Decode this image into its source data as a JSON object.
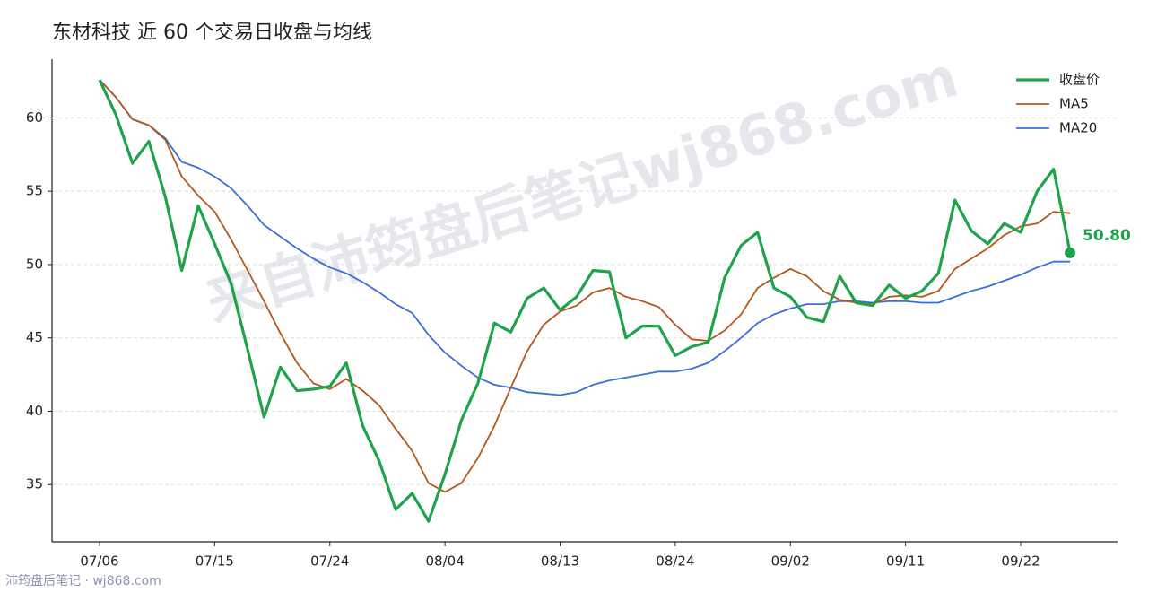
{
  "chart_data": {
    "type": "line",
    "title": "东材科技 近 60 个交易日收盘与均线",
    "watermark": "来自沛筠盘后笔记wj868.com",
    "source": "沛筠盘后笔记 · wj868.com",
    "categories": [
      "07/06",
      null,
      null,
      null,
      null,
      null,
      null,
      "07/15",
      null,
      null,
      null,
      null,
      null,
      null,
      "07/24",
      null,
      null,
      null,
      null,
      null,
      null,
      "08/04",
      null,
      null,
      null,
      null,
      null,
      null,
      "08/13",
      null,
      null,
      null,
      null,
      null,
      null,
      "08/24",
      null,
      null,
      null,
      null,
      null,
      null,
      "09/02",
      null,
      null,
      null,
      null,
      null,
      null,
      "09/11",
      null,
      null,
      null,
      null,
      null,
      null,
      "09/22",
      null,
      null,
      null
    ],
    "ylim": [
      31.1,
      64.0
    ],
    "yticks": [
      35,
      40,
      45,
      50,
      55,
      60
    ],
    "grid": true,
    "legend": "upper right",
    "series": [
      {
        "name": "收盘价",
        "color": "#1fa34a",
        "values": [
          62.6,
          60.2,
          56.9,
          58.4,
          54.6,
          49.6,
          54.0,
          51.4,
          48.7,
          44.2,
          39.6,
          43.0,
          41.4,
          41.5,
          41.7,
          43.3,
          39.0,
          36.6,
          33.3,
          34.4,
          32.5,
          35.7,
          39.4,
          41.9,
          46.0,
          45.4,
          47.7,
          48.4,
          46.9,
          47.8,
          49.6,
          49.5,
          45.0,
          45.8,
          45.8,
          43.8,
          44.4,
          44.7,
          49.1,
          51.3,
          52.2,
          48.4,
          47.8,
          46.4,
          46.1,
          49.2,
          47.4,
          47.2,
          48.6,
          47.7,
          48.2,
          49.4,
          54.4,
          52.3,
          51.4,
          52.8,
          52.2,
          55.0,
          56.5,
          50.8
        ],
        "value_labels": [
          null,
          null,
          null,
          null,
          null,
          null,
          null,
          null,
          null,
          null,
          null,
          null,
          null,
          null,
          null,
          null,
          null,
          null,
          null,
          null,
          null,
          null,
          null,
          null,
          null,
          null,
          null,
          null,
          null,
          null,
          null,
          null,
          null,
          null,
          null,
          null,
          null,
          null,
          null,
          null,
          null,
          null,
          null,
          null,
          null,
          null,
          null,
          null,
          null,
          null,
          null,
          null,
          null,
          null,
          null,
          null,
          null,
          null,
          null,
          "50.80"
        ]
      },
      {
        "name": "MA5",
        "color": "#b5561a",
        "values": [
          62.6,
          61.4,
          59.9,
          59.5,
          58.5,
          56.0,
          54.7,
          53.6,
          51.7,
          49.6,
          47.5,
          45.3,
          43.3,
          41.9,
          41.5,
          42.2,
          41.4,
          40.4,
          38.8,
          37.3,
          35.1,
          34.5,
          35.1,
          36.8,
          39.0,
          41.6,
          44.1,
          45.9,
          46.8,
          47.2,
          48.1,
          48.4,
          47.8,
          47.5,
          47.1,
          45.9,
          44.9,
          44.8,
          45.5,
          46.6,
          48.4,
          49.1,
          49.7,
          49.2,
          48.2,
          47.6,
          47.4,
          47.3,
          47.8,
          47.9,
          47.8,
          48.2,
          49.7,
          50.4,
          51.1,
          52.0,
          52.6,
          52.8,
          53.6,
          53.5
        ]
      },
      {
        "name": "MA20",
        "color": "#3a6fdb",
        "values": [
          62.6,
          61.4,
          59.9,
          59.5,
          58.6,
          57.0,
          56.6,
          56.0,
          55.2,
          54.0,
          52.7,
          51.9,
          51.1,
          50.4,
          49.8,
          49.4,
          48.8,
          48.1,
          47.3,
          46.7,
          45.2,
          44.0,
          43.1,
          42.3,
          41.8,
          41.6,
          41.3,
          41.2,
          41.1,
          41.3,
          41.8,
          42.1,
          42.3,
          42.5,
          42.7,
          42.7,
          42.9,
          43.3,
          44.1,
          45.0,
          46.0,
          46.6,
          47.0,
          47.3,
          47.3,
          47.5,
          47.5,
          47.4,
          47.5,
          47.5,
          47.4,
          47.4,
          47.8,
          48.2,
          48.5,
          48.9,
          49.3,
          49.8,
          50.2,
          50.2
        ]
      }
    ]
  }
}
